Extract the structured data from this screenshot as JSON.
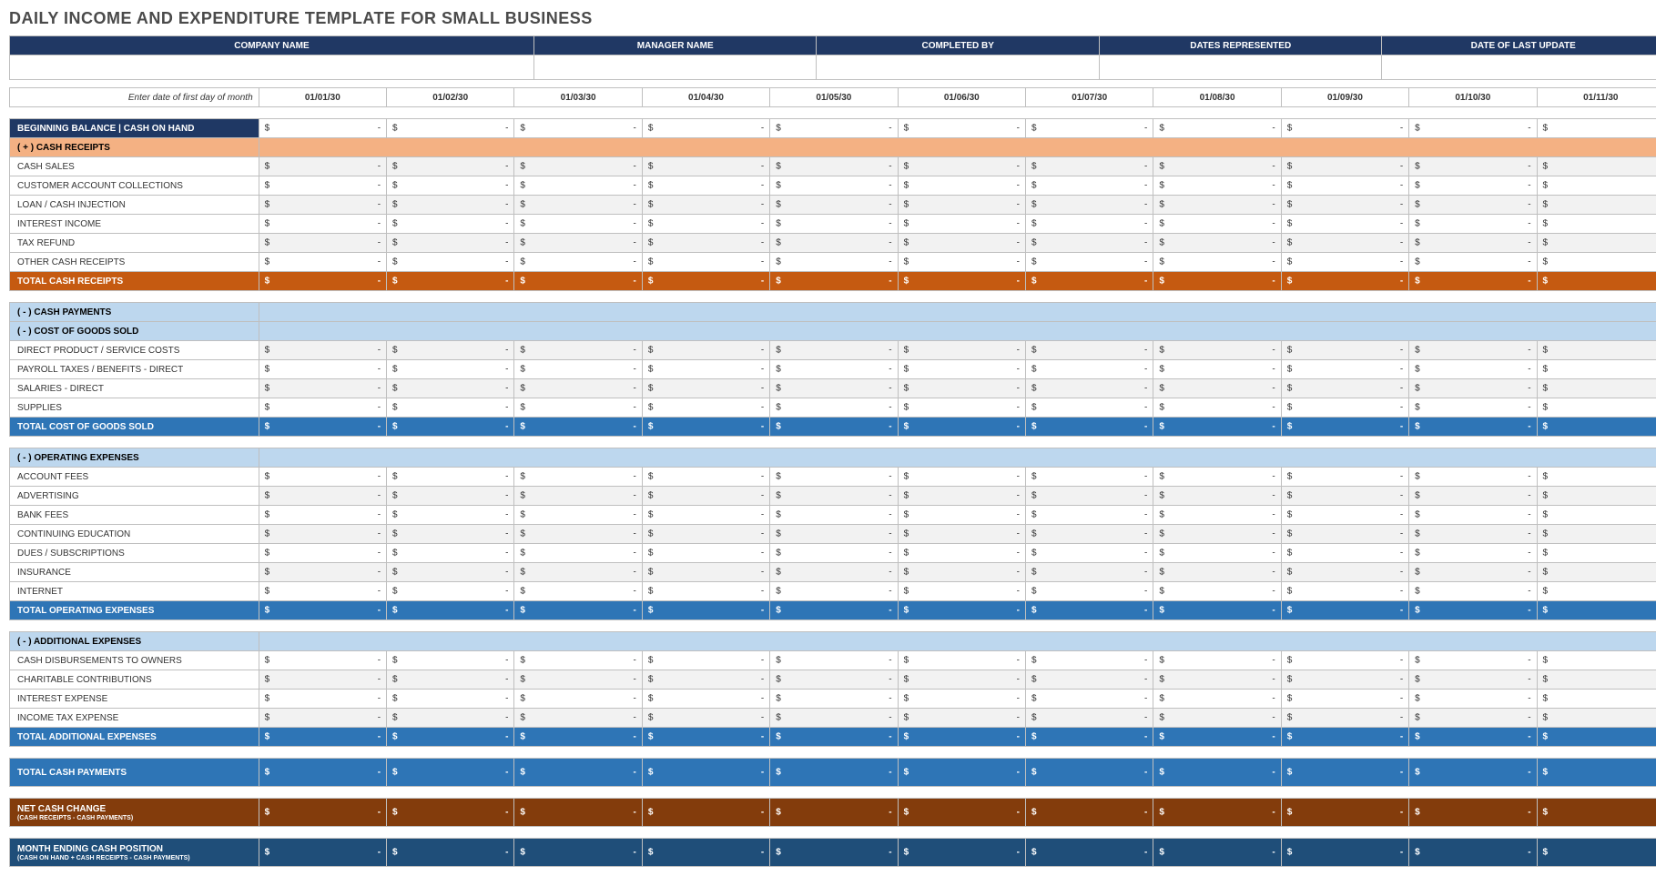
{
  "title": "DAILY INCOME AND EXPENDITURE TEMPLATE FOR SMALL BUSINESS",
  "info_headers": [
    "COMPANY NAME",
    "MANAGER NAME",
    "COMPLETED BY",
    "DATES REPRESENTED",
    "DATE OF LAST UPDATE"
  ],
  "date_hint": "Enter date of first day of month",
  "dates": [
    "01/01/30",
    "01/02/30",
    "01/03/30",
    "01/04/30",
    "01/05/30",
    "01/06/30",
    "01/07/30",
    "01/08/30",
    "01/09/30",
    "01/10/30",
    "01/11/30"
  ],
  "beginning_label": "BEGINNING BALANCE | CASH ON HAND",
  "sections": {
    "cash_receipts": {
      "header": "( + )  CASH RECEIPTS",
      "rows": [
        "CASH SALES",
        "CUSTOMER ACCOUNT COLLECTIONS",
        "LOAN / CASH INJECTION",
        "INTEREST INCOME",
        "TAX REFUND",
        "OTHER CASH RECEIPTS"
      ],
      "total_label": "TOTAL CASH RECEIPTS"
    },
    "cash_payments_header": "( - )  CASH PAYMENTS",
    "cogs": {
      "header": "( - )  COST OF GOODS SOLD",
      "rows": [
        "DIRECT PRODUCT / SERVICE COSTS",
        "PAYROLL TAXES / BENEFITS - DIRECT",
        "SALARIES - DIRECT",
        "SUPPLIES"
      ],
      "total_label": "TOTAL COST OF GOODS SOLD"
    },
    "opex": {
      "header": "( - )  OPERATING EXPENSES",
      "rows": [
        "ACCOUNT FEES",
        "ADVERTISING",
        "BANK FEES",
        "CONTINUING EDUCATION",
        "DUES / SUBSCRIPTIONS",
        "INSURANCE",
        "INTERNET"
      ],
      "total_label": "TOTAL OPERATING EXPENSES"
    },
    "addl": {
      "header": "( - )  ADDITIONAL EXPENSES",
      "rows": [
        "CASH DISBURSEMENTS TO OWNERS",
        "CHARITABLE CONTRIBUTIONS",
        "INTEREST EXPENSE",
        "INCOME TAX EXPENSE"
      ],
      "total_label": "TOTAL ADDITIONAL EXPENSES"
    },
    "total_cash_payments": "TOTAL CASH PAYMENTS",
    "net_cash": {
      "main": "NET CASH CHANGE",
      "sub": "(CASH RECEIPTS - CASH PAYMENTS)"
    },
    "month_end": {
      "main": "MONTH ENDING CASH POSITION",
      "sub": "(CASH ON HAND + CASH RECEIPTS - CASH PAYMENTS)"
    }
  },
  "currency_symbol": "$",
  "empty_value": "-",
  "colors": {
    "dark_navy": "#203864",
    "salmon": "#f4b183",
    "lightblue": "#bdd7ee",
    "orange": "#c55a11",
    "blue": "#2e75b6",
    "darkblue": "#1f4e79",
    "brown": "#833c0c"
  }
}
